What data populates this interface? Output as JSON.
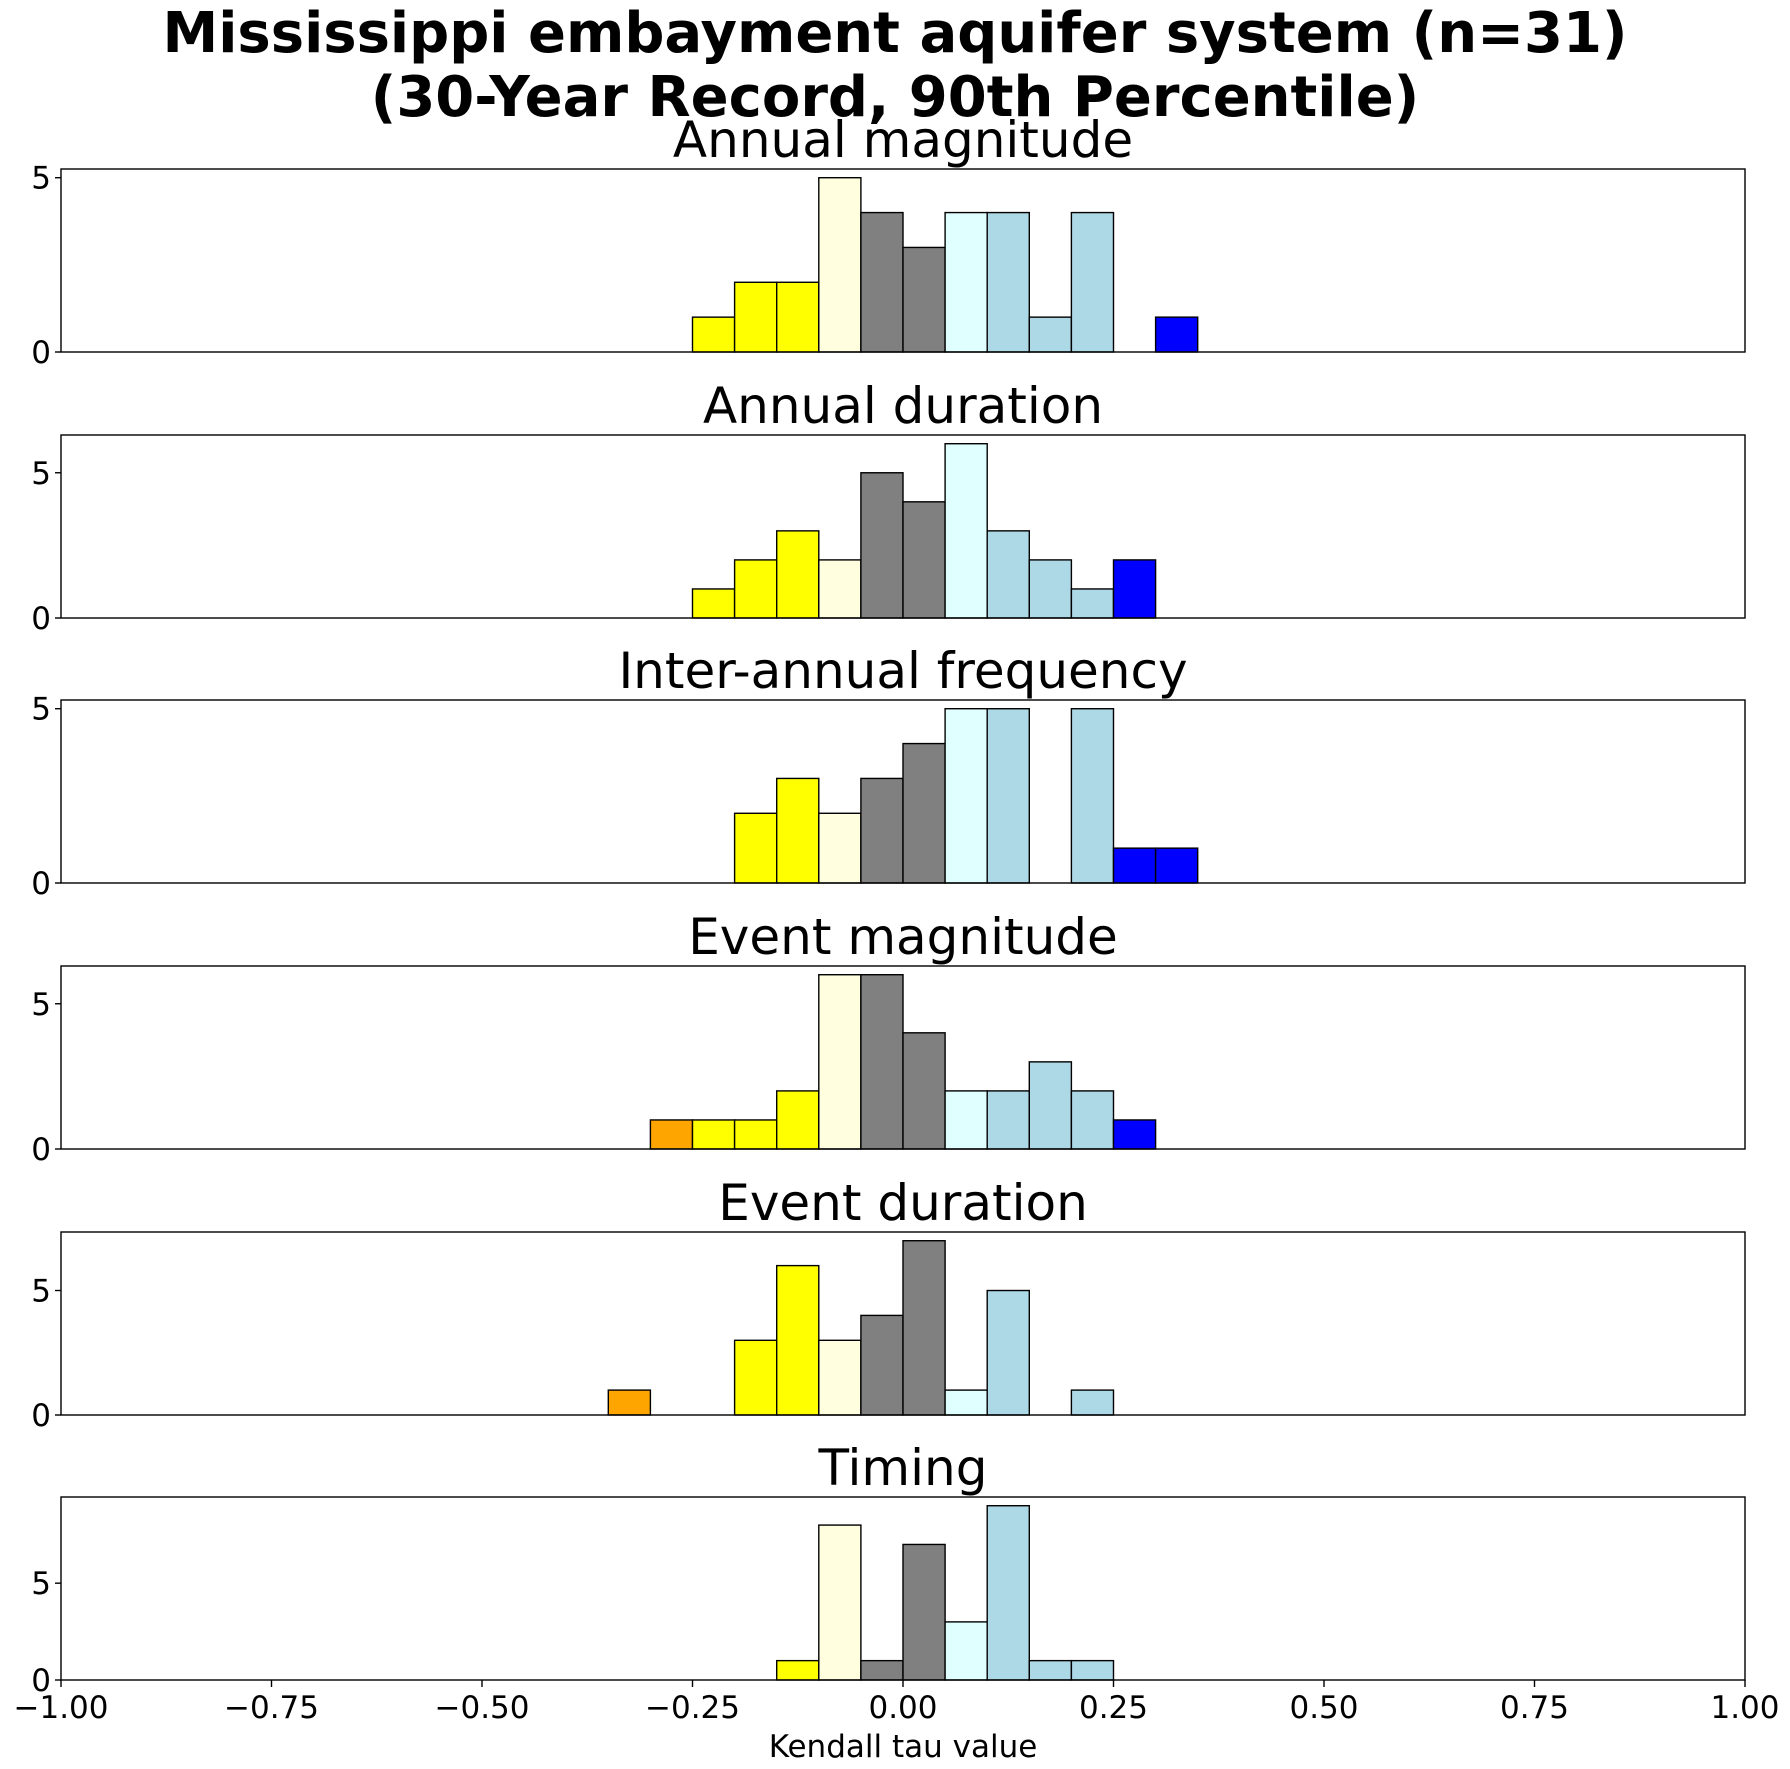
{
  "suptitle": {
    "line1": "Mississippi embayment aquifer system (n=31)",
    "line2": "(30-Year Record, 90th Percentile)"
  },
  "xaxis": {
    "label": "Kendall tau value",
    "range": [
      -1.0,
      1.0
    ],
    "ticks": [
      -1.0,
      -0.75,
      -0.5,
      -0.25,
      0.0,
      0.25,
      0.5,
      0.75,
      1.0
    ],
    "tick_labels": [
      "−1.00",
      "−0.75",
      "−0.50",
      "−0.25",
      "0.00",
      "0.25",
      "0.50",
      "0.75",
      "1.00"
    ]
  },
  "colors": {
    "orange": "#FFA500",
    "yellow": "#FFFF00",
    "lightyellow": "#FFFFE0",
    "gray": "#808080",
    "lightcyan": "#E0FFFF",
    "lightblue": "#ADD8E6",
    "blue": "#0000FF"
  },
  "chart_data": [
    {
      "type": "bar",
      "title": "Annual magnitude",
      "ylim": [
        0,
        5.25
      ],
      "yticks": [
        0,
        5
      ],
      "bins": [
        {
          "x0": -0.25,
          "x1": -0.2,
          "count": 1,
          "color": "yellow"
        },
        {
          "x0": -0.2,
          "x1": -0.15,
          "count": 2,
          "color": "yellow"
        },
        {
          "x0": -0.15,
          "x1": -0.1,
          "count": 2,
          "color": "yellow"
        },
        {
          "x0": -0.1,
          "x1": -0.05,
          "count": 5,
          "color": "lightyellow"
        },
        {
          "x0": -0.05,
          "x1": 0.0,
          "count": 4,
          "color": "gray"
        },
        {
          "x0": 0.0,
          "x1": 0.05,
          "count": 3,
          "color": "gray"
        },
        {
          "x0": 0.05,
          "x1": 0.1,
          "count": 4,
          "color": "lightcyan"
        },
        {
          "x0": 0.1,
          "x1": 0.15,
          "count": 4,
          "color": "lightblue"
        },
        {
          "x0": 0.15,
          "x1": 0.2,
          "count": 1,
          "color": "lightblue"
        },
        {
          "x0": 0.2,
          "x1": 0.25,
          "count": 4,
          "color": "lightblue"
        },
        {
          "x0": 0.3,
          "x1": 0.35,
          "count": 1,
          "color": "blue"
        }
      ]
    },
    {
      "type": "bar",
      "title": "Annual duration",
      "ylim": [
        0,
        6.3
      ],
      "yticks": [
        0,
        5
      ],
      "bins": [
        {
          "x0": -0.25,
          "x1": -0.2,
          "count": 1,
          "color": "yellow"
        },
        {
          "x0": -0.2,
          "x1": -0.15,
          "count": 2,
          "color": "yellow"
        },
        {
          "x0": -0.15,
          "x1": -0.1,
          "count": 3,
          "color": "yellow"
        },
        {
          "x0": -0.1,
          "x1": -0.05,
          "count": 2,
          "color": "lightyellow"
        },
        {
          "x0": -0.05,
          "x1": 0.0,
          "count": 5,
          "color": "gray"
        },
        {
          "x0": 0.0,
          "x1": 0.05,
          "count": 4,
          "color": "gray"
        },
        {
          "x0": 0.05,
          "x1": 0.1,
          "count": 6,
          "color": "lightcyan"
        },
        {
          "x0": 0.1,
          "x1": 0.15,
          "count": 3,
          "color": "lightblue"
        },
        {
          "x0": 0.15,
          "x1": 0.2,
          "count": 2,
          "color": "lightblue"
        },
        {
          "x0": 0.2,
          "x1": 0.25,
          "count": 1,
          "color": "lightblue"
        },
        {
          "x0": 0.25,
          "x1": 0.3,
          "count": 2,
          "color": "blue"
        }
      ]
    },
    {
      "type": "bar",
      "title": "Inter-annual frequency",
      "ylim": [
        0,
        5.25
      ],
      "yticks": [
        0,
        5
      ],
      "bins": [
        {
          "x0": -0.2,
          "x1": -0.15,
          "count": 2,
          "color": "yellow"
        },
        {
          "x0": -0.15,
          "x1": -0.1,
          "count": 3,
          "color": "yellow"
        },
        {
          "x0": -0.1,
          "x1": -0.05,
          "count": 2,
          "color": "lightyellow"
        },
        {
          "x0": -0.05,
          "x1": 0.0,
          "count": 3,
          "color": "gray"
        },
        {
          "x0": 0.0,
          "x1": 0.05,
          "count": 4,
          "color": "gray"
        },
        {
          "x0": 0.05,
          "x1": 0.1,
          "count": 5,
          "color": "lightcyan"
        },
        {
          "x0": 0.1,
          "x1": 0.15,
          "count": 5,
          "color": "lightblue"
        },
        {
          "x0": 0.2,
          "x1": 0.25,
          "count": 5,
          "color": "lightblue"
        },
        {
          "x0": 0.25,
          "x1": 0.3,
          "count": 1,
          "color": "blue"
        },
        {
          "x0": 0.3,
          "x1": 0.35,
          "count": 1,
          "color": "blue"
        }
      ]
    },
    {
      "type": "bar",
      "title": "Event magnitude",
      "ylim": [
        0,
        6.3
      ],
      "yticks": [
        0,
        5
      ],
      "bins": [
        {
          "x0": -0.3,
          "x1": -0.25,
          "count": 1,
          "color": "orange"
        },
        {
          "x0": -0.25,
          "x1": -0.2,
          "count": 1,
          "color": "yellow"
        },
        {
          "x0": -0.2,
          "x1": -0.15,
          "count": 1,
          "color": "yellow"
        },
        {
          "x0": -0.15,
          "x1": -0.1,
          "count": 2,
          "color": "yellow"
        },
        {
          "x0": -0.1,
          "x1": -0.05,
          "count": 6,
          "color": "lightyellow"
        },
        {
          "x0": -0.05,
          "x1": 0.0,
          "count": 6,
          "color": "gray"
        },
        {
          "x0": 0.0,
          "x1": 0.05,
          "count": 4,
          "color": "gray"
        },
        {
          "x0": 0.05,
          "x1": 0.1,
          "count": 2,
          "color": "lightcyan"
        },
        {
          "x0": 0.1,
          "x1": 0.15,
          "count": 2,
          "color": "lightblue"
        },
        {
          "x0": 0.15,
          "x1": 0.2,
          "count": 3,
          "color": "lightblue"
        },
        {
          "x0": 0.2,
          "x1": 0.25,
          "count": 2,
          "color": "lightblue"
        },
        {
          "x0": 0.25,
          "x1": 0.3,
          "count": 1,
          "color": "blue"
        }
      ]
    },
    {
      "type": "bar",
      "title": "Event duration",
      "ylim": [
        0,
        7.35
      ],
      "yticks": [
        0,
        5
      ],
      "bins": [
        {
          "x0": -0.35,
          "x1": -0.3,
          "count": 1,
          "color": "orange"
        },
        {
          "x0": -0.2,
          "x1": -0.15,
          "count": 3,
          "color": "yellow"
        },
        {
          "x0": -0.15,
          "x1": -0.1,
          "count": 6,
          "color": "yellow"
        },
        {
          "x0": -0.1,
          "x1": -0.05,
          "count": 3,
          "color": "lightyellow"
        },
        {
          "x0": -0.05,
          "x1": 0.0,
          "count": 4,
          "color": "gray"
        },
        {
          "x0": 0.0,
          "x1": 0.05,
          "count": 7,
          "color": "gray"
        },
        {
          "x0": 0.05,
          "x1": 0.1,
          "count": 1,
          "color": "lightcyan"
        },
        {
          "x0": 0.1,
          "x1": 0.15,
          "count": 5,
          "color": "lightblue"
        },
        {
          "x0": 0.2,
          "x1": 0.25,
          "count": 1,
          "color": "lightblue"
        }
      ]
    },
    {
      "type": "bar",
      "title": "Timing",
      "ylim": [
        0,
        9.45
      ],
      "yticks": [
        0,
        5
      ],
      "bins": [
        {
          "x0": -0.15,
          "x1": -0.1,
          "count": 1,
          "color": "yellow"
        },
        {
          "x0": -0.1,
          "x1": -0.05,
          "count": 8,
          "color": "lightyellow"
        },
        {
          "x0": -0.05,
          "x1": 0.0,
          "count": 1,
          "color": "gray"
        },
        {
          "x0": 0.0,
          "x1": 0.05,
          "count": 7,
          "color": "gray"
        },
        {
          "x0": 0.05,
          "x1": 0.1,
          "count": 3,
          "color": "lightcyan"
        },
        {
          "x0": 0.1,
          "x1": 0.15,
          "count": 9,
          "color": "lightblue"
        },
        {
          "x0": 0.15,
          "x1": 0.2,
          "count": 1,
          "color": "lightblue"
        },
        {
          "x0": 0.2,
          "x1": 0.25,
          "count": 1,
          "color": "lightblue"
        }
      ]
    }
  ]
}
